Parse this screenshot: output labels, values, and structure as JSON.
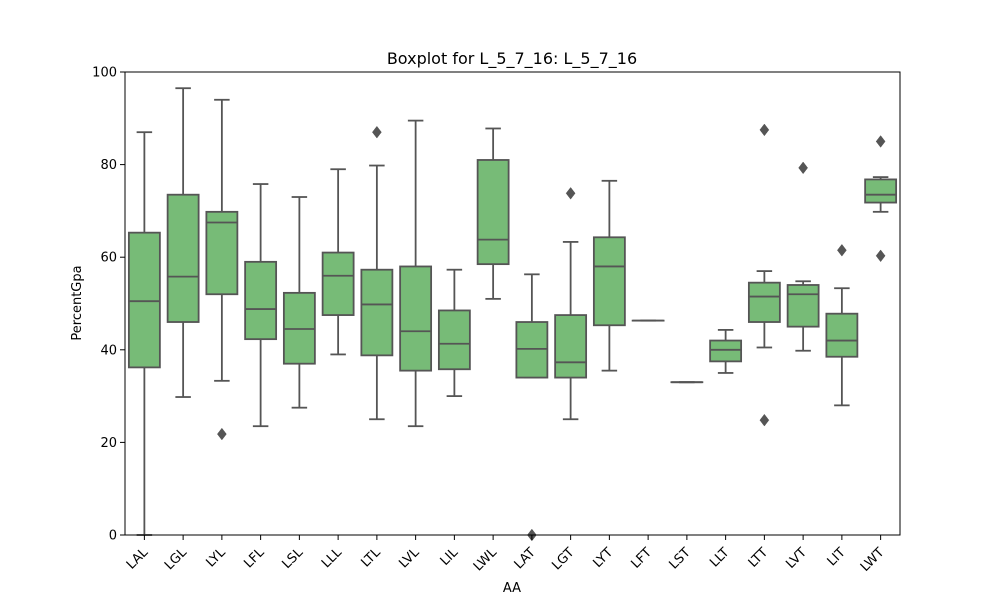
{
  "chart_data": {
    "type": "box",
    "title": "Boxplot for L_5_7_16: L_5_7_16",
    "xlabel": "AA",
    "ylabel": "PercentGpa",
    "ylim": [
      0,
      100
    ],
    "yticks": [
      0,
      20,
      40,
      60,
      80,
      100
    ],
    "grid": false,
    "box_color": "#77bb77",
    "edge_color": "#555555",
    "categories": [
      "LAL",
      "LGL",
      "LYL",
      "LFL",
      "LSL",
      "LLL",
      "LTL",
      "LVL",
      "LIL",
      "LWL",
      "LAT",
      "LGT",
      "LYT",
      "LFT",
      "LST",
      "LLT",
      "LTT",
      "LVT",
      "LIT",
      "LWT"
    ],
    "boxes": [
      {
        "whisker_low": 0.0,
        "q1": 36.2,
        "median": 50.5,
        "q3": 65.3,
        "whisker_high": 87.0,
        "outliers": []
      },
      {
        "whisker_low": 29.8,
        "q1": 46.0,
        "median": 55.8,
        "q3": 73.5,
        "whisker_high": 96.5,
        "outliers": []
      },
      {
        "whisker_low": 33.3,
        "q1": 52.0,
        "median": 67.5,
        "q3": 69.8,
        "whisker_high": 94.0,
        "outliers": [
          21.8
        ]
      },
      {
        "whisker_low": 23.5,
        "q1": 42.3,
        "median": 48.8,
        "q3": 59.0,
        "whisker_high": 75.8,
        "outliers": []
      },
      {
        "whisker_low": 27.5,
        "q1": 37.0,
        "median": 44.5,
        "q3": 52.3,
        "whisker_high": 73.0,
        "outliers": []
      },
      {
        "whisker_low": 39.0,
        "q1": 47.5,
        "median": 56.0,
        "q3": 61.0,
        "whisker_high": 79.0,
        "outliers": []
      },
      {
        "whisker_low": 25.0,
        "q1": 38.8,
        "median": 49.8,
        "q3": 57.3,
        "whisker_high": 79.8,
        "outliers": [
          87.0
        ]
      },
      {
        "whisker_low": 23.5,
        "q1": 35.5,
        "median": 44.0,
        "q3": 58.0,
        "whisker_high": 89.5,
        "outliers": []
      },
      {
        "whisker_low": 30.0,
        "q1": 35.8,
        "median": 41.3,
        "q3": 48.5,
        "whisker_high": 57.3,
        "outliers": []
      },
      {
        "whisker_low": 51.0,
        "q1": 58.5,
        "median": 63.8,
        "q3": 81.0,
        "whisker_high": 87.8,
        "outliers": []
      },
      {
        "whisker_low": 34.0,
        "q1": 34.0,
        "median": 40.2,
        "q3": 46.0,
        "whisker_high": 56.3,
        "outliers": [
          0.0
        ]
      },
      {
        "whisker_low": 25.0,
        "q1": 34.0,
        "median": 37.3,
        "q3": 47.5,
        "whisker_high": 63.3,
        "outliers": [
          73.8
        ]
      },
      {
        "whisker_low": 35.5,
        "q1": 45.3,
        "median": 58.0,
        "q3": 64.3,
        "whisker_high": 76.5,
        "outliers": []
      },
      {
        "whisker_low": 46.3,
        "q1": 46.3,
        "median": 46.3,
        "q3": 46.3,
        "whisker_high": 46.3,
        "outliers": []
      },
      {
        "whisker_low": 33.0,
        "q1": 33.0,
        "median": 33.0,
        "q3": 33.0,
        "whisker_high": 33.0,
        "outliers": []
      },
      {
        "whisker_low": 35.0,
        "q1": 37.5,
        "median": 40.0,
        "q3": 42.0,
        "whisker_high": 44.3,
        "outliers": []
      },
      {
        "whisker_low": 40.5,
        "q1": 46.0,
        "median": 51.5,
        "q3": 54.5,
        "whisker_high": 57.0,
        "outliers": [
          87.5,
          24.8
        ]
      },
      {
        "whisker_low": 39.8,
        "q1": 45.0,
        "median": 52.0,
        "q3": 54.0,
        "whisker_high": 54.8,
        "outliers": [
          79.3
        ]
      },
      {
        "whisker_low": 28.0,
        "q1": 38.5,
        "median": 42.0,
        "q3": 47.8,
        "whisker_high": 53.3,
        "outliers": [
          61.5
        ]
      },
      {
        "whisker_low": 69.8,
        "q1": 71.8,
        "median": 73.5,
        "q3": 76.8,
        "whisker_high": 77.3,
        "outliers": [
          85.0,
          60.3
        ]
      }
    ]
  }
}
